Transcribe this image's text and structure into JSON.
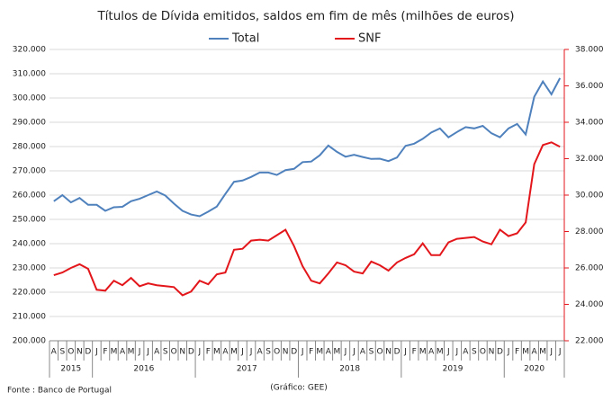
{
  "chart_data": {
    "type": "line",
    "title": "Títulos de Dívida emitidos, saldos em fim de mês  (milhões de euros)",
    "categories": [
      "A",
      "S",
      "O",
      "N",
      "D",
      "J",
      "F",
      "M",
      "A",
      "M",
      "J",
      "J",
      "A",
      "S",
      "O",
      "N",
      "D",
      "J",
      "F",
      "M",
      "A",
      "M",
      "J",
      "J",
      "A",
      "S",
      "O",
      "N",
      "D",
      "J",
      "F",
      "M",
      "A",
      "M",
      "J",
      "J",
      "A",
      "S",
      "O",
      "N",
      "D",
      "J",
      "F",
      "M",
      "A",
      "M",
      "J",
      "J",
      "A",
      "S",
      "O",
      "N",
      "D",
      "J",
      "F",
      "M",
      "A",
      "M",
      "J",
      "J"
    ],
    "year_labels": [
      "2015",
      "2016",
      "2017",
      "2018",
      "2019",
      "2020"
    ],
    "series": [
      {
        "name": "Total",
        "color": "#4f81bd",
        "values": [
          257500,
          260000,
          257000,
          258800,
          256000,
          256000,
          253500,
          255000,
          255200,
          257500,
          258500,
          260000,
          261500,
          259800,
          256500,
          253500,
          252000,
          251300,
          253200,
          255300,
          260500,
          265500,
          266000,
          267500,
          269300,
          269300,
          268300,
          270300,
          270800,
          273600,
          273800,
          276400,
          280400,
          277800,
          275800,
          276600,
          275700,
          274900,
          275000,
          274000,
          275500,
          280300,
          281200,
          283200,
          285800,
          287500,
          283800,
          286000,
          288000,
          287500,
          288500,
          285500,
          283800,
          287500,
          289300,
          285000,
          300500,
          306800,
          301500,
          308200
        ]
      },
      {
        "name": "SNF",
        "color": "#e3161b",
        "axis": "y2",
        "values": [
          25600,
          25750,
          26000,
          26200,
          25950,
          24800,
          24750,
          25300,
          25050,
          25450,
          25000,
          25150,
          25050,
          25000,
          24950,
          24500,
          24700,
          25300,
          25100,
          25650,
          25750,
          27000,
          27050,
          27500,
          27550,
          27500,
          27800,
          28100,
          27200,
          26100,
          25300,
          25150,
          25700,
          26300,
          26150,
          25800,
          25700,
          26350,
          26150,
          25850,
          26300,
          26550,
          26750,
          27350,
          26700,
          26700,
          27400,
          27600,
          27650,
          27700,
          27450,
          27300,
          28100,
          27750,
          27900,
          28500,
          31700,
          32750,
          32900,
          32650
        ]
      }
    ],
    "ylim": [
      200000,
      320000
    ],
    "yticks": [
      {
        "value": 200000,
        "label": "200.000"
      },
      {
        "value": 210000,
        "label": "210.000"
      },
      {
        "value": 220000,
        "label": "220.000"
      },
      {
        "value": 230000,
        "label": "230.000"
      },
      {
        "value": 240000,
        "label": "240.000"
      },
      {
        "value": 250000,
        "label": "250.000"
      },
      {
        "value": 260000,
        "label": "260.000"
      },
      {
        "value": 270000,
        "label": "270.000"
      },
      {
        "value": 280000,
        "label": "280.000"
      },
      {
        "value": 290000,
        "label": "290.000"
      },
      {
        "value": 300000,
        "label": "300.000"
      },
      {
        "value": 310000,
        "label": "310.000"
      },
      {
        "value": 320000,
        "label": "320.000"
      }
    ],
    "y2lim": [
      22000,
      38000
    ],
    "y2ticks": [
      {
        "value": 22000,
        "label": "22.000"
      },
      {
        "value": 24000,
        "label": "24.000"
      },
      {
        "value": 26000,
        "label": "26.000"
      },
      {
        "value": 28000,
        "label": "28.000"
      },
      {
        "value": 30000,
        "label": "30.000"
      },
      {
        "value": 32000,
        "label": "32.000"
      },
      {
        "value": 34000,
        "label": "34.000"
      },
      {
        "value": 36000,
        "label": "36.000"
      },
      {
        "value": 38000,
        "label": "38.000"
      }
    ],
    "grid": true,
    "legend": "top",
    "source": "Fonte : Banco de Portugal",
    "credit": "(Gráfico: GEE)"
  }
}
